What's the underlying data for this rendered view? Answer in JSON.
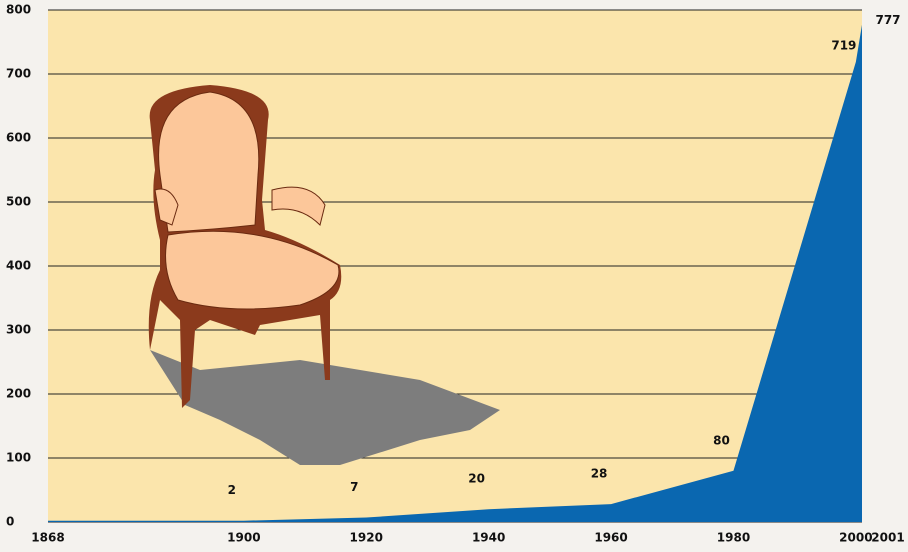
{
  "chart_data": {
    "type": "area",
    "x": [
      1868,
      1900,
      1920,
      1940,
      1960,
      1980,
      2000,
      2001
    ],
    "values": [
      2,
      2,
      7,
      20,
      28,
      80,
      719,
      777
    ],
    "value_labels": [
      null,
      "2",
      "7",
      "20",
      "28",
      "80",
      "719",
      "777"
    ],
    "color": "#0a67b0",
    "xlim": [
      1868,
      2001
    ],
    "ylim": [
      0,
      800
    ],
    "yticks": [
      0,
      100,
      200,
      300,
      400,
      500,
      600,
      700,
      800
    ],
    "grid": true
  }
}
